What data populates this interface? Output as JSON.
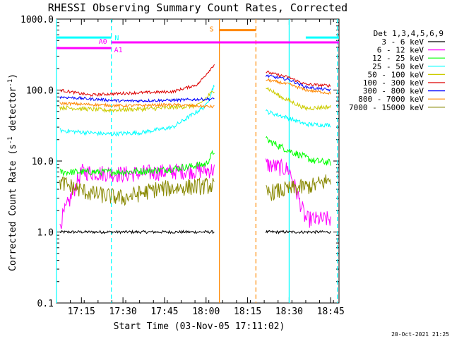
{
  "chart_data": {
    "type": "line",
    "title": "RHESSI Observing Summary Count Rates, Corrected",
    "xlabel": "Start Time (03-Nov-05 17:11:02)",
    "ylabel_main": "Corrected Count Rate (s",
    "ylabel_exp1": "-1",
    "ylabel_mid": " detector",
    "ylabel_exp2": "-1",
    "ylabel_end": ")",
    "yscale": "log",
    "ylim": [
      0.1,
      1000
    ],
    "xlim_minutes": [
      17.1,
      18.8
    ],
    "x_ticks": [
      {
        "label": "17:15",
        "t": 17.25
      },
      {
        "label": "17:30",
        "t": 17.5
      },
      {
        "label": "17:45",
        "t": 17.75
      },
      {
        "label": "18:00",
        "t": 18.0
      },
      {
        "label": "18:15",
        "t": 18.25
      },
      {
        "label": "18:30",
        "t": 18.5
      },
      {
        "label": "18:45",
        "t": 18.75
      }
    ],
    "y_ticks": [
      {
        "label": "0.1",
        "v": 0.1
      },
      {
        "label": "1.0",
        "v": 1
      },
      {
        "label": "10.0",
        "v": 10
      },
      {
        "label": "100.0",
        "v": 100
      },
      {
        "label": "1000.0",
        "v": 1000
      }
    ],
    "legend_title": "Det 1,3,4,5,6,9",
    "series": [
      {
        "name": "3 - 6 keV",
        "color": "#000000",
        "seg1": [
          [
            17.12,
            1.0
          ],
          [
            18.05,
            1.0
          ]
        ],
        "seg2": [
          [
            18.36,
            1.0
          ],
          [
            18.75,
            1.0
          ]
        ]
      },
      {
        "name": "6 - 12 keV",
        "color": "#ff00ff",
        "seg1": [
          [
            17.12,
            1.3
          ],
          [
            17.25,
            7.0
          ],
          [
            17.5,
            6.5
          ],
          [
            17.75,
            7.0
          ],
          [
            18.05,
            7.5
          ]
        ],
        "seg2": [
          [
            18.36,
            9.0
          ],
          [
            18.5,
            7.5
          ],
          [
            18.6,
            1.5
          ],
          [
            18.75,
            1.5
          ]
        ]
      },
      {
        "name": "12 - 25 keV",
        "color": "#00ff00",
        "seg1": [
          [
            17.12,
            7.0
          ],
          [
            17.5,
            7.0
          ],
          [
            17.75,
            7.5
          ],
          [
            18.0,
            9.0
          ],
          [
            18.05,
            14.0
          ]
        ],
        "seg2": [
          [
            18.36,
            20.0
          ],
          [
            18.5,
            14.0
          ],
          [
            18.65,
            10.0
          ],
          [
            18.75,
            9.5
          ]
        ]
      },
      {
        "name": "25 - 50 keV",
        "color": "#00ffff",
        "seg1": [
          [
            17.12,
            27.0
          ],
          [
            17.4,
            24.0
          ],
          [
            17.6,
            25.0
          ],
          [
            17.8,
            30.0
          ],
          [
            18.0,
            60.0
          ],
          [
            18.05,
            120.0
          ]
        ],
        "seg2": [
          [
            18.36,
            50.0
          ],
          [
            18.5,
            40.0
          ],
          [
            18.6,
            33.0
          ],
          [
            18.75,
            32.0
          ]
        ]
      },
      {
        "name": "50 - 100 keV",
        "color": "#cccc00",
        "seg1": [
          [
            17.12,
            57.0
          ],
          [
            17.4,
            52.0
          ],
          [
            17.7,
            55.0
          ],
          [
            17.95,
            60.0
          ],
          [
            18.05,
            100.0
          ]
        ],
        "seg2": [
          [
            18.36,
            110.0
          ],
          [
            18.45,
            80.0
          ],
          [
            18.6,
            55.0
          ],
          [
            18.75,
            58.0
          ]
        ]
      },
      {
        "name": "100 - 300 keV",
        "color": "#dd0000",
        "seg1": [
          [
            17.12,
            100.0
          ],
          [
            17.3,
            85.0
          ],
          [
            17.5,
            90.0
          ],
          [
            17.8,
            95.0
          ],
          [
            17.95,
            120.0
          ],
          [
            18.05,
            230.0
          ]
        ],
        "seg2": [
          [
            18.36,
            180.0
          ],
          [
            18.5,
            150.0
          ],
          [
            18.6,
            120.0
          ],
          [
            18.75,
            115.0
          ]
        ]
      },
      {
        "name": "300 - 800 keV",
        "color": "#0000ff",
        "seg1": [
          [
            17.12,
            80.0
          ],
          [
            17.5,
            70.0
          ],
          [
            17.8,
            72.0
          ],
          [
            18.05,
            75.0
          ]
        ],
        "seg2": [
          [
            18.36,
            160.0
          ],
          [
            18.5,
            140.0
          ],
          [
            18.6,
            110.0
          ],
          [
            18.75,
            100.0
          ]
        ]
      },
      {
        "name": "800 - 7000 keV",
        "color": "#ff8800",
        "seg1": [
          [
            17.12,
            65.0
          ],
          [
            17.5,
            60.0
          ],
          [
            17.8,
            62.0
          ],
          [
            18.05,
            58.0
          ]
        ],
        "seg2": [
          [
            18.36,
            140.0
          ],
          [
            18.5,
            120.0
          ],
          [
            18.6,
            100.0
          ],
          [
            18.75,
            90.0
          ]
        ]
      },
      {
        "name": "7000 - 15000 keV",
        "color": "#888800",
        "seg1": [
          [
            17.12,
            5.0
          ],
          [
            17.3,
            3.5
          ],
          [
            17.5,
            3.0
          ],
          [
            17.7,
            4.0
          ],
          [
            18.05,
            4.5
          ]
        ],
        "seg2": [
          [
            18.36,
            3.5
          ],
          [
            18.5,
            4.0
          ],
          [
            18.65,
            4.5
          ],
          [
            18.75,
            5.5
          ]
        ]
      }
    ],
    "state_bars": [
      {
        "label": "N",
        "color": "#00ffff",
        "v": 550,
        "segments": [
          [
            17.1,
            17.43
          ],
          [
            18.6,
            18.8
          ]
        ]
      },
      {
        "label": "S",
        "color": "#ff8800",
        "v": 700,
        "segments": [
          [
            18.08,
            18.3
          ]
        ]
      },
      {
        "label": "A0",
        "color": "#ff00ff",
        "v": 470,
        "segments": [
          [
            17.43,
            18.8
          ]
        ]
      },
      {
        "label": "A1",
        "color": "#ff00ff",
        "v": 390,
        "segments": [
          [
            17.1,
            17.43
          ]
        ]
      }
    ],
    "vlines": [
      {
        "t": 17.1,
        "color": "#00ffff",
        "style": "solid"
      },
      {
        "t": 17.43,
        "color": "#00ffff",
        "style": "dashed"
      },
      {
        "t": 18.08,
        "color": "#ff8800",
        "style": "solid"
      },
      {
        "t": 18.3,
        "color": "#ff8800",
        "style": "dashed"
      },
      {
        "t": 18.5,
        "color": "#00ffff",
        "style": "solid"
      },
      {
        "t": 18.79,
        "color": "#00ffff",
        "style": "dashed"
      }
    ]
  },
  "footer_timestamp": "20-Oct-2021 21:25"
}
